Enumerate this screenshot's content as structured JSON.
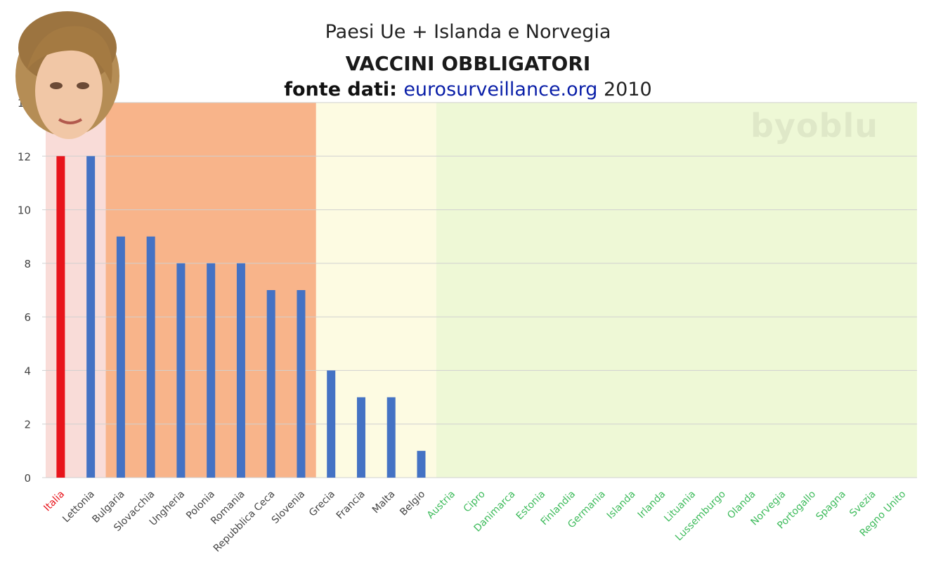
{
  "title_lines": {
    "line1": "Paesi Ue + Islanda e Norvegia",
    "line2": "VACCINI OBBLIGATORI",
    "line3_prefix": "fonte dati: ",
    "line3_link": "eurosurveillance.org",
    "line3_suffix": " 2010"
  },
  "watermark": "byoblu",
  "colors": {
    "zone_pink": "#f9dcd8",
    "zone_orange": "#f8b48a",
    "zone_yellow": "#fdfbe2",
    "zone_green": "#eef8d6",
    "bar_blue": "#4472c4",
    "bar_red": "#e8141b",
    "label_green": "#3dbb5b",
    "label_red": "#e8141b",
    "label_dark": "#444444",
    "grid": "#d0d0d0"
  },
  "chart_data": {
    "type": "bar",
    "title": "VACCINI OBBLIGATORI",
    "xlabel": "",
    "ylabel": "",
    "ylim": [
      0,
      14
    ],
    "yticks": [
      0,
      2,
      4,
      6,
      8,
      10,
      12,
      14
    ],
    "grid": true,
    "legend": "none",
    "categories": [
      "Italia",
      "Lettonia",
      "Bulgaria",
      "Slovacchia",
      "Ungheria",
      "Polonia",
      "Romania",
      "Repubblica Ceca",
      "Slovenia",
      "Grecia",
      "Francia",
      "Malta",
      "Belgio",
      "Austria",
      "Cipro",
      "Danimarca",
      "Estonia",
      "Finlandia",
      "Germania",
      "Islanda",
      "Irlanda",
      "Lituania",
      "Lussemburgo",
      "Olanda",
      "Norvegia",
      "Portogallo",
      "Spagna",
      "Svezia",
      "Regno Unito"
    ],
    "values": [
      12,
      12,
      9,
      9,
      8,
      8,
      8,
      7,
      7,
      4,
      3,
      3,
      1,
      0,
      0,
      0,
      0,
      0,
      0,
      0,
      0,
      0,
      0,
      0,
      0,
      0,
      0,
      0,
      0
    ],
    "highlight_category": "Italia"
  }
}
